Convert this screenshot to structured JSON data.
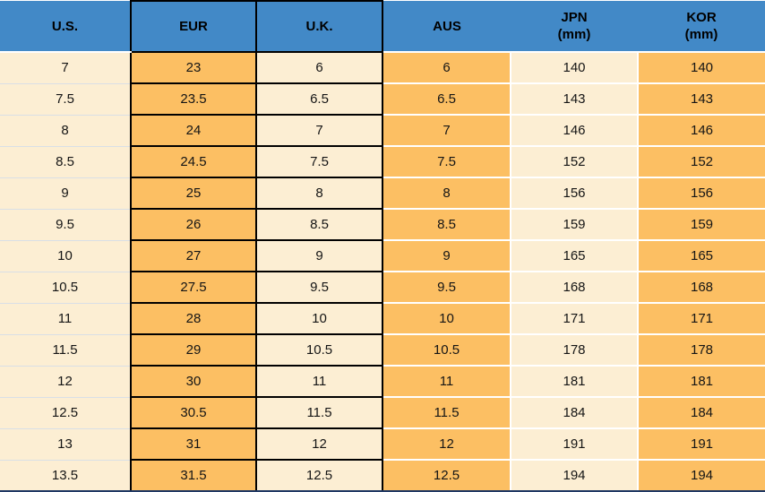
{
  "chart_data": {
    "type": "table",
    "columns": [
      {
        "label": "U.S.",
        "sub": ""
      },
      {
        "label": "EUR",
        "sub": ""
      },
      {
        "label": "U.K.",
        "sub": ""
      },
      {
        "label": "AUS",
        "sub": ""
      },
      {
        "label": "JPN",
        "sub": "(mm)"
      },
      {
        "label": "KOR",
        "sub": "(mm)"
      }
    ],
    "rows": [
      [
        "7",
        "23",
        "6",
        "6",
        "140",
        "140"
      ],
      [
        "7.5",
        "23.5",
        "6.5",
        "6.5",
        "143",
        "143"
      ],
      [
        "8",
        "24",
        "7",
        "7",
        "146",
        "146"
      ],
      [
        "8.5",
        "24.5",
        "7.5",
        "7.5",
        "152",
        "152"
      ],
      [
        "9",
        "25",
        "8",
        "8",
        "156",
        "156"
      ],
      [
        "9.5",
        "26",
        "8.5",
        "8.5",
        "159",
        "159"
      ],
      [
        "10",
        "27",
        "9",
        "9",
        "165",
        "165"
      ],
      [
        "10.5",
        "27.5",
        "9.5",
        "9.5",
        "168",
        "168"
      ],
      [
        "11",
        "28",
        "10",
        "10",
        "171",
        "171"
      ],
      [
        "11.5",
        "29",
        "10.5",
        "10.5",
        "178",
        "178"
      ],
      [
        "12",
        "30",
        "11",
        "11",
        "181",
        "181"
      ],
      [
        "12.5",
        "30.5",
        "11.5",
        "11.5",
        "184",
        "184"
      ],
      [
        "13",
        "31",
        "12",
        "12",
        "191",
        "191"
      ],
      [
        "13.5",
        "31.5",
        "12.5",
        "12.5",
        "194",
        "194"
      ]
    ],
    "layout": {
      "grid": "black borders on EUR and U.K. columns, white dividers elsewhere",
      "legend": "none",
      "title": ""
    }
  },
  "colors": {
    "header_blue": "#4289C7",
    "orange": "#FCBF63",
    "cream": "#FCEED3",
    "border_black": "#000000",
    "row_divider_light": "#D9DFE6",
    "white_divider": "#FFFFFF",
    "bottom_navy": "#1F3864"
  }
}
